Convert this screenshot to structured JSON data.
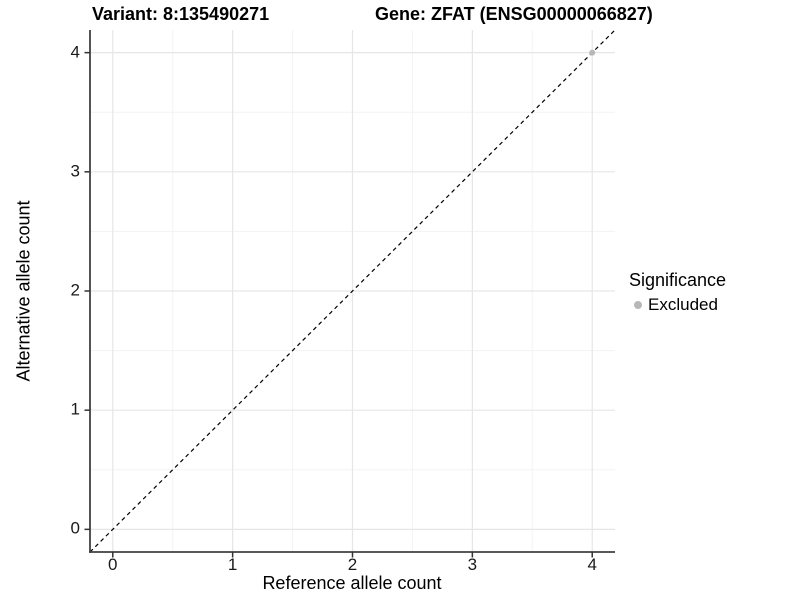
{
  "header": {
    "variant_title": "Variant: 8:135490271",
    "gene_title": "Gene: ZFAT (ENSG00000066827)"
  },
  "legend": {
    "title": "Significance",
    "items": [
      {
        "label": "Excluded",
        "color": "#b8b8b8"
      }
    ]
  },
  "chart_data": {
    "type": "scatter",
    "titles": [
      "Variant: 8:135490271",
      "Gene: ZFAT (ENSG00000066827)"
    ],
    "xlabel": "Reference allele count",
    "ylabel": "Alternative allele count",
    "xlim": [
      -0.19,
      4.19
    ],
    "ylim": [
      -0.19,
      4.19
    ],
    "xticks": [
      0,
      1,
      2,
      3,
      4
    ],
    "yticks": [
      0,
      1,
      2,
      3,
      4
    ],
    "minor_xticks": [
      0.5,
      1.5,
      2.5,
      3.5
    ],
    "minor_yticks": [
      0.5,
      1.5,
      2.5,
      3.5
    ],
    "grid": "major+minor",
    "legend_title": "Significance",
    "legend_position": "right",
    "reference_line": {
      "equation": "y = x",
      "style": "dashed",
      "color": "#000000"
    },
    "series": [
      {
        "name": "Excluded",
        "color": "#b8b8b8",
        "points": [
          {
            "x": 4,
            "y": 4
          }
        ]
      }
    ]
  },
  "colors": {
    "background": "#ffffff",
    "grid_major": "#e6e6e6",
    "grid_minor": "#f3f3f3",
    "axis_line": "#404040",
    "tick_mark": "#333333",
    "tick_text": "#1a1a1a",
    "point": "#b8b8b8"
  }
}
